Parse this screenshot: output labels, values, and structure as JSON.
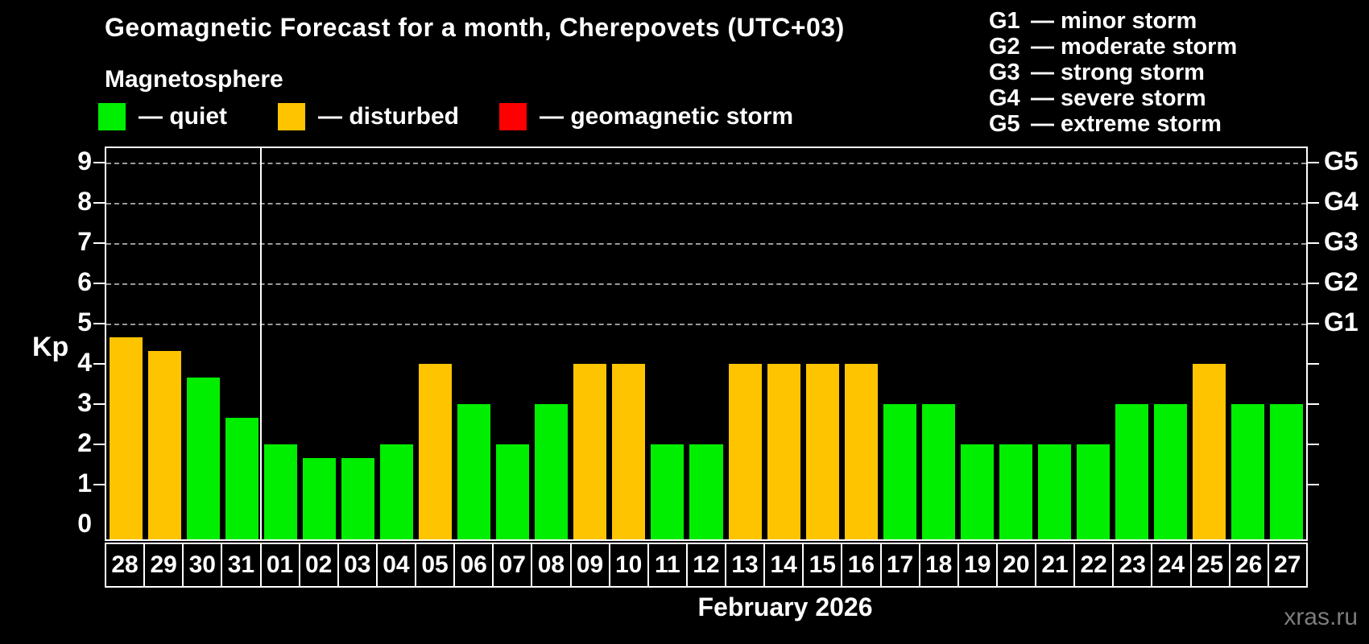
{
  "title": "Geomagnetic Forecast for a month, Cherepovets (UTC+03)",
  "subtitle": "Magnetosphere",
  "legend": {
    "items": [
      {
        "key": "quiet",
        "label": "— quiet"
      },
      {
        "key": "disturbed",
        "label": "— disturbed"
      },
      {
        "key": "storm",
        "label": "— geomagnetic storm"
      }
    ]
  },
  "storm_scale": [
    {
      "code": "G1",
      "label": "— minor storm"
    },
    {
      "code": "G2",
      "label": "— moderate storm"
    },
    {
      "code": "G3",
      "label": "— strong storm"
    },
    {
      "code": "G4",
      "label": "— severe storm"
    },
    {
      "code": "G5",
      "label": "— extreme storm"
    }
  ],
  "colors": {
    "quiet": "#00ee00",
    "disturbed": "#ffc400",
    "storm": "#ff0000",
    "axis": "#ffffff",
    "grid": "#9a9a9a",
    "background": "#000000",
    "watermark": "#7d7d7d"
  },
  "axis": {
    "y_label": "Kp",
    "y_tick_values": [
      0,
      1,
      2,
      3,
      4,
      5,
      6,
      7,
      8,
      9
    ],
    "right_labels": [
      {
        "value": 5,
        "code": "G1"
      },
      {
        "value": 6,
        "code": "G2"
      },
      {
        "value": 7,
        "code": "G3"
      },
      {
        "value": 8,
        "code": "G4"
      },
      {
        "value": 9,
        "code": "G5"
      }
    ],
    "gridline_values": [
      5,
      6,
      7,
      8,
      9
    ]
  },
  "chart_data": {
    "type": "bar",
    "title": "Geomagnetic Forecast for a month, Cherepovets (UTC+03)",
    "ylabel": "Kp",
    "xlabel": "February 2026",
    "ylim": [
      0,
      9.4
    ],
    "grid": "dashed horizontal at Kp 5-9 (G1-G5)",
    "legend_position": "top-left",
    "categories": [
      "28",
      "29",
      "30",
      "31",
      "01",
      "02",
      "03",
      "04",
      "05",
      "06",
      "07",
      "08",
      "09",
      "10",
      "11",
      "12",
      "13",
      "14",
      "15",
      "16",
      "17",
      "18",
      "19",
      "20",
      "21",
      "22",
      "23",
      "24",
      "25",
      "26",
      "27"
    ],
    "values": [
      4.67,
      4.33,
      3.67,
      2.67,
      2,
      1.67,
      1.67,
      2,
      4,
      3,
      2,
      3,
      4,
      4,
      2,
      2,
      4,
      4,
      4,
      4,
      3,
      3,
      2,
      2,
      2,
      2,
      3,
      3,
      4,
      3,
      3
    ],
    "statuses": [
      "disturbed",
      "disturbed",
      "quiet",
      "quiet",
      "quiet",
      "quiet",
      "quiet",
      "quiet",
      "disturbed",
      "quiet",
      "quiet",
      "quiet",
      "disturbed",
      "disturbed",
      "quiet",
      "quiet",
      "disturbed",
      "disturbed",
      "disturbed",
      "disturbed",
      "quiet",
      "quiet",
      "quiet",
      "quiet",
      "quiet",
      "quiet",
      "quiet",
      "quiet",
      "disturbed",
      "quiet",
      "quiet"
    ],
    "month_boundary_index": 4
  },
  "footer": {
    "month_label": "February 2026",
    "watermark": "xras.ru"
  }
}
